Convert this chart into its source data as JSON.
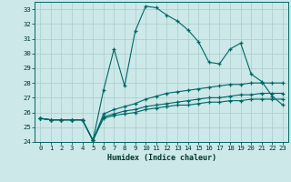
{
  "xlabel": "Humidex (Indice chaleur)",
  "ylabel": "",
  "bg_color": "#cce8e8",
  "grid_color": "#aacccc",
  "line_color": "#006666",
  "xmin": -0.5,
  "xmax": 23.5,
  "ymin": 24,
  "ymax": 33.5,
  "series": [
    [
      25.6,
      25.5,
      25.5,
      25.5,
      25.5,
      24.1,
      27.5,
      30.3,
      27.8,
      31.5,
      33.2,
      33.1,
      32.6,
      32.2,
      31.6,
      30.8,
      29.4,
      29.3,
      30.3,
      30.7,
      28.6,
      28.1,
      27.1,
      26.5
    ],
    [
      25.6,
      25.5,
      25.5,
      25.5,
      25.5,
      24.1,
      25.9,
      26.2,
      26.4,
      26.6,
      26.9,
      27.1,
      27.3,
      27.4,
      27.5,
      27.6,
      27.7,
      27.8,
      27.9,
      27.9,
      28.0,
      28.0,
      28.0,
      28.0
    ],
    [
      25.6,
      25.5,
      25.5,
      25.5,
      25.5,
      24.1,
      25.7,
      25.9,
      26.1,
      26.2,
      26.4,
      26.5,
      26.6,
      26.7,
      26.8,
      26.9,
      27.0,
      27.0,
      27.1,
      27.2,
      27.2,
      27.3,
      27.3,
      27.3
    ],
    [
      25.6,
      25.5,
      25.5,
      25.5,
      25.5,
      24.1,
      25.6,
      25.8,
      25.9,
      26.0,
      26.2,
      26.3,
      26.4,
      26.5,
      26.5,
      26.6,
      26.7,
      26.7,
      26.8,
      26.8,
      26.9,
      26.9,
      26.9,
      26.9
    ]
  ],
  "yticks": [
    24,
    25,
    26,
    27,
    28,
    29,
    30,
    31,
    32,
    33
  ],
  "xticks": [
    0,
    1,
    2,
    3,
    4,
    5,
    6,
    7,
    8,
    9,
    10,
    11,
    12,
    13,
    14,
    15,
    16,
    17,
    18,
    19,
    20,
    21,
    22,
    23
  ],
  "xlabel_fontsize": 6.0,
  "tick_fontsize": 5.2
}
